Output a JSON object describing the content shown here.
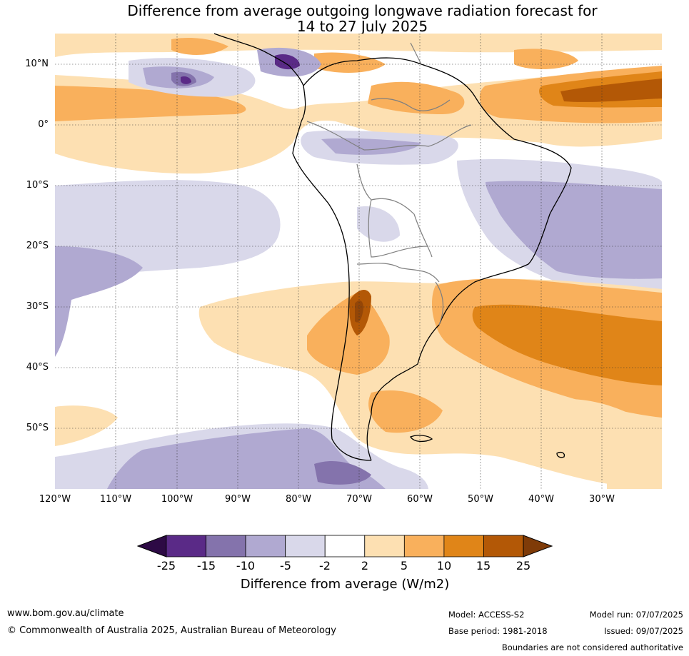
{
  "title_line1": "Difference from average outgoing longwave radiation forecast for",
  "title_line2": "14 to 27 July 2025",
  "map": {
    "region": "South America",
    "lat_labels": [
      "10°N",
      "0°",
      "10°S",
      "20°S",
      "30°S",
      "40°S",
      "50°S"
    ],
    "lon_labels": [
      "120°W",
      "110°W",
      "100°W",
      "90°W",
      "80°W",
      "70°W",
      "60°W",
      "50°W",
      "40°W",
      "30°W"
    ]
  },
  "colorbar": {
    "ticks": [
      "-25",
      "-15",
      "-10",
      "-5",
      "-2",
      "2",
      "5",
      "10",
      "15",
      "25"
    ],
    "colors": [
      "#2d0a45",
      "#5a2a87",
      "#8473ac",
      "#b0a9d1",
      "#d9d8ea",
      "#ffffff",
      "#fde0b2",
      "#f9b05c",
      "#e08518",
      "#b35806",
      "#7f3b08"
    ],
    "label": "Difference from average (W/m2)"
  },
  "footer": {
    "website": "www.bom.gov.au/climate",
    "copyright": "© Commonwealth of Australia 2025, Australian Bureau of Meteorology",
    "model": "Model: ACCESS-S2",
    "base_period": "Base period: 1981-2018",
    "model_run": "Model run: 07/07/2025",
    "issued": "Issued: 09/07/2025",
    "disclaimer": "Boundaries are not considered authoritative"
  }
}
